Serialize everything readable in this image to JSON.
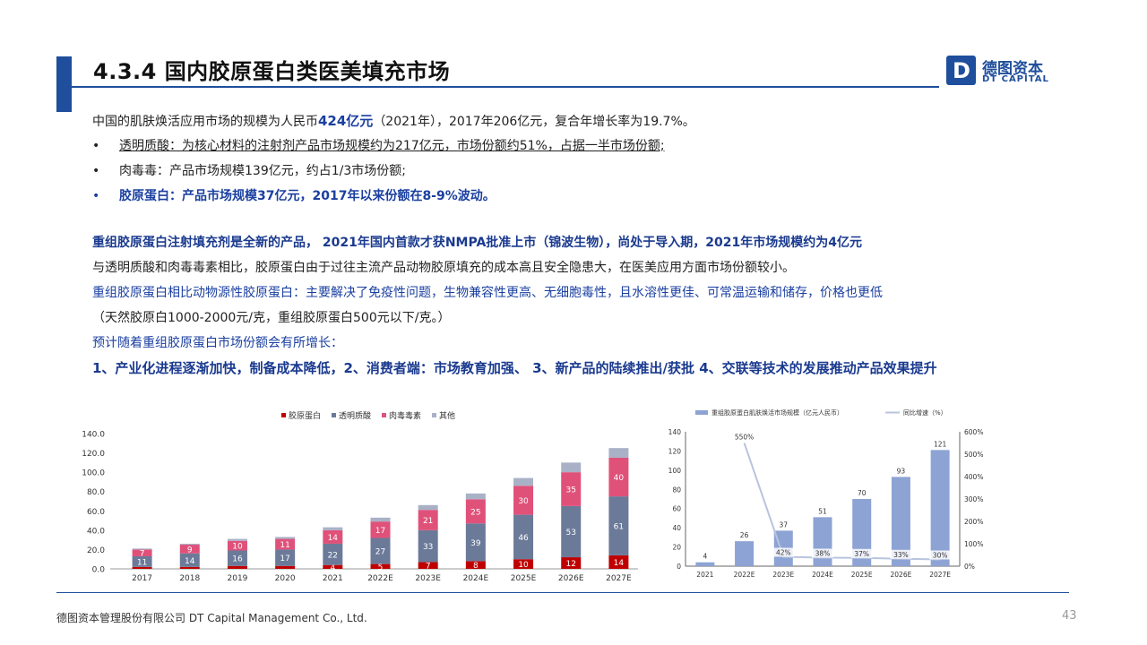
{
  "header": {
    "title": "4.3.4 国内胶原蛋白类医美填充市场",
    "logo_cn": "德图资本",
    "logo_en": "DT CAPITAL",
    "logo_letter": "D"
  },
  "body": {
    "l1_a": "中国的肌肤焕活应用市场的规模为人民币",
    "l1_b": "424亿元",
    "l1_c": "（2021年），2017年206亿元，复合年增长率为19.7%。",
    "b1": "透明质酸：为核心材料的注射剂产品市场规模约为217亿元，市场份额约51%，占据一半市场份额;",
    "b2": "肉毒毒：产品市场规模139亿元，约占1/3市场份额;",
    "b3": "胶原蛋白：产品市场规模37亿元，2017年以来份额在8-9%波动。",
    "bullet": "•",
    "p2": "重组胶原蛋白注射填充剂是全新的产品， 2021年国内首款才获NMPA批准上市（锦波生物），尚处于导入期，2021年市场规模约为4亿元",
    "p3": "与透明质酸和肉毒毒素相比，胶原蛋白由于过往主流产品动物胶原填充的成本高且安全隐患大，在医美应用方面市场份额较小。",
    "p4": "重组胶原蛋白相比动物源性胶原蛋白：主要解决了免疫性问题，生物兼容性更高、无细胞毒性，且水溶性更佳、可常温运输和储存，价格也更低",
    "p5": "（天然胶原白1000-2000元/克，重组胶原蛋白500元以下/克。）",
    "p6": "预计随着重组胶原蛋白市场份额会有所增长：",
    "p7": "1、产业化进程逐渐加快，制备成本降低，2、消费者端：市场教育加强、 3、新产品的陆续推出/获批  4、交联等技术的发展推动产品效果提升"
  },
  "footer": {
    "company": "德图资本管理股份有限公司  DT Capital  Management  Co., Ltd.",
    "page": "43"
  },
  "chart_data": [
    {
      "type": "bar",
      "stacked": true,
      "categories": [
        "2017",
        "2018",
        "2019",
        "2020",
        "2021",
        "2022E",
        "2023E",
        "2024E",
        "2025E",
        "2026E",
        "2027E"
      ],
      "series": [
        {
          "name": "胶原蛋白",
          "color": "#c00000",
          "values": [
            2,
            2,
            3,
            3,
            4,
            5,
            7,
            8,
            10,
            12,
            14
          ]
        },
        {
          "name": "透明质酸",
          "color": "#6b7a99",
          "values": [
            11,
            14,
            16,
            17,
            22,
            27,
            33,
            39,
            46,
            53,
            61
          ]
        },
        {
          "name": "肉毒毒素",
          "color": "#e0517a",
          "values": [
            7,
            9,
            10,
            11,
            14,
            17,
            21,
            25,
            30,
            35,
            40
          ]
        },
        {
          "name": "其他",
          "color": "#a9b1c7",
          "values": [
            1,
            1,
            2,
            2,
            3,
            4,
            5,
            6,
            8,
            10,
            10
          ]
        }
      ],
      "labels": {
        "胶原蛋白": [
          "",
          "",
          "",
          "",
          "4",
          "5",
          "7",
          "8",
          "10",
          "12",
          "14"
        ],
        "透明质酸": [
          "11",
          "14",
          "16",
          "17",
          "22",
          "27",
          "33",
          "39",
          "46",
          "53",
          "61"
        ],
        "肉毒毒素": [
          "7",
          "9",
          "10",
          "11",
          "14",
          "17",
          "21",
          "25",
          "30",
          "35",
          "40"
        ]
      },
      "yticks": [
        "0.0",
        "20.0",
        "40.0",
        "60.0",
        "80.0",
        "100.0",
        "120.0",
        "140.0"
      ],
      "ylim": [
        0,
        140
      ],
      "legend": "top-center",
      "grid": false
    },
    {
      "type": "bar",
      "categories": [
        "2021",
        "2022E",
        "2023E",
        "2024E",
        "2025E",
        "2026E",
        "2027E"
      ],
      "series": [
        {
          "name": "重组胶原蛋白肌肤焕活市场规模（亿元人民币）",
          "color": "#8da3d4",
          "values": [
            4,
            26,
            37,
            51,
            70,
            93,
            121
          ]
        },
        {
          "name": "同比增速（%）",
          "color": "#b8c4de",
          "values": [
            null,
            550,
            42,
            38,
            37,
            33,
            30
          ]
        }
      ],
      "bar_labels": [
        "4",
        "26",
        "37",
        "51",
        "70",
        "93",
        "121"
      ],
      "line_labels": [
        "",
        "550%",
        "42%",
        "38%",
        "37%",
        "33%",
        "30%"
      ],
      "yticks_left": [
        "0",
        "20",
        "40",
        "60",
        "80",
        "100",
        "120",
        "140"
      ],
      "yticks_right": [
        "0%",
        "100%",
        "200%",
        "300%",
        "400%",
        "500%",
        "600%"
      ],
      "ylim": [
        0,
        140
      ],
      "ylim_right": [
        0,
        600
      ],
      "legend": "top-center",
      "grid": false
    }
  ]
}
